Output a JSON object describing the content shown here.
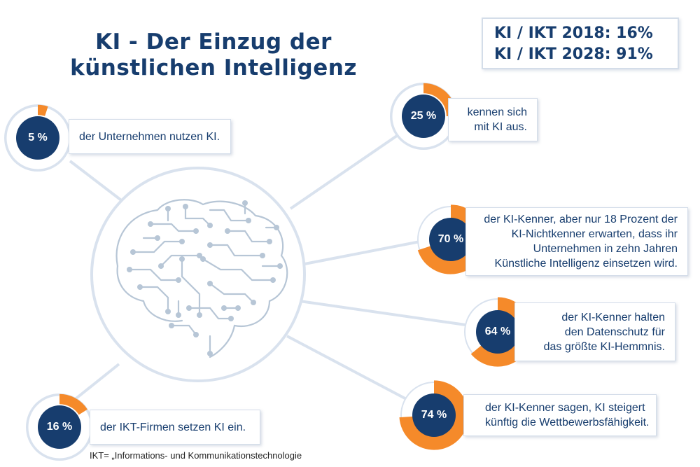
{
  "title_line1": "KI - Der Einzug der",
  "title_line2": "künstlichen Intelligenz",
  "ikt_box": {
    "line1": "KI / IKT 2018: 16%",
    "line2": "KI / IKT 2028: 91%"
  },
  "colors": {
    "navy": "#173d6e",
    "orange": "#f58a2a",
    "ring": "#d9e2ee",
    "line": "#d9e2ee",
    "brain": "#b7c6d6"
  },
  "stats": [
    {
      "id": "unternehmen",
      "value": 5,
      "pct_label": "5 %",
      "lines": [
        "der Unternehmen nutzen KI."
      ]
    },
    {
      "id": "kennen",
      "value": 25,
      "pct_label": "25 %",
      "lines": [
        "kennen sich",
        "mit KI aus."
      ]
    },
    {
      "id": "erwarten",
      "value": 70,
      "pct_label": "70 %",
      "lines": [
        "der KI-Kenner, aber nur 18 Prozent der",
        "KI-Nichtkenner erwarten, dass ihr",
        "Unternehmen in zehn Jahren",
        "Künstliche Intelligenz einsetzen wird."
      ]
    },
    {
      "id": "datenschutz",
      "value": 64,
      "pct_label": "64 %",
      "lines": [
        "der KI-Kenner halten",
        "den Datenschutz für",
        "das größte KI-Hemmnis."
      ]
    },
    {
      "id": "wettbewerb",
      "value": 74,
      "pct_label": "74 %",
      "lines": [
        "der KI-Kenner sagen, KI steigert",
        "künftig die Wettbewerbsfähigkeit."
      ]
    },
    {
      "id": "ikt-firmen",
      "value": 16,
      "pct_label": "16 %",
      "lines": [
        "der IKT-Firmen setzen KI ein."
      ]
    }
  ],
  "footnote": "IKT= „Informations- und Kommunikationstechnologie"
}
